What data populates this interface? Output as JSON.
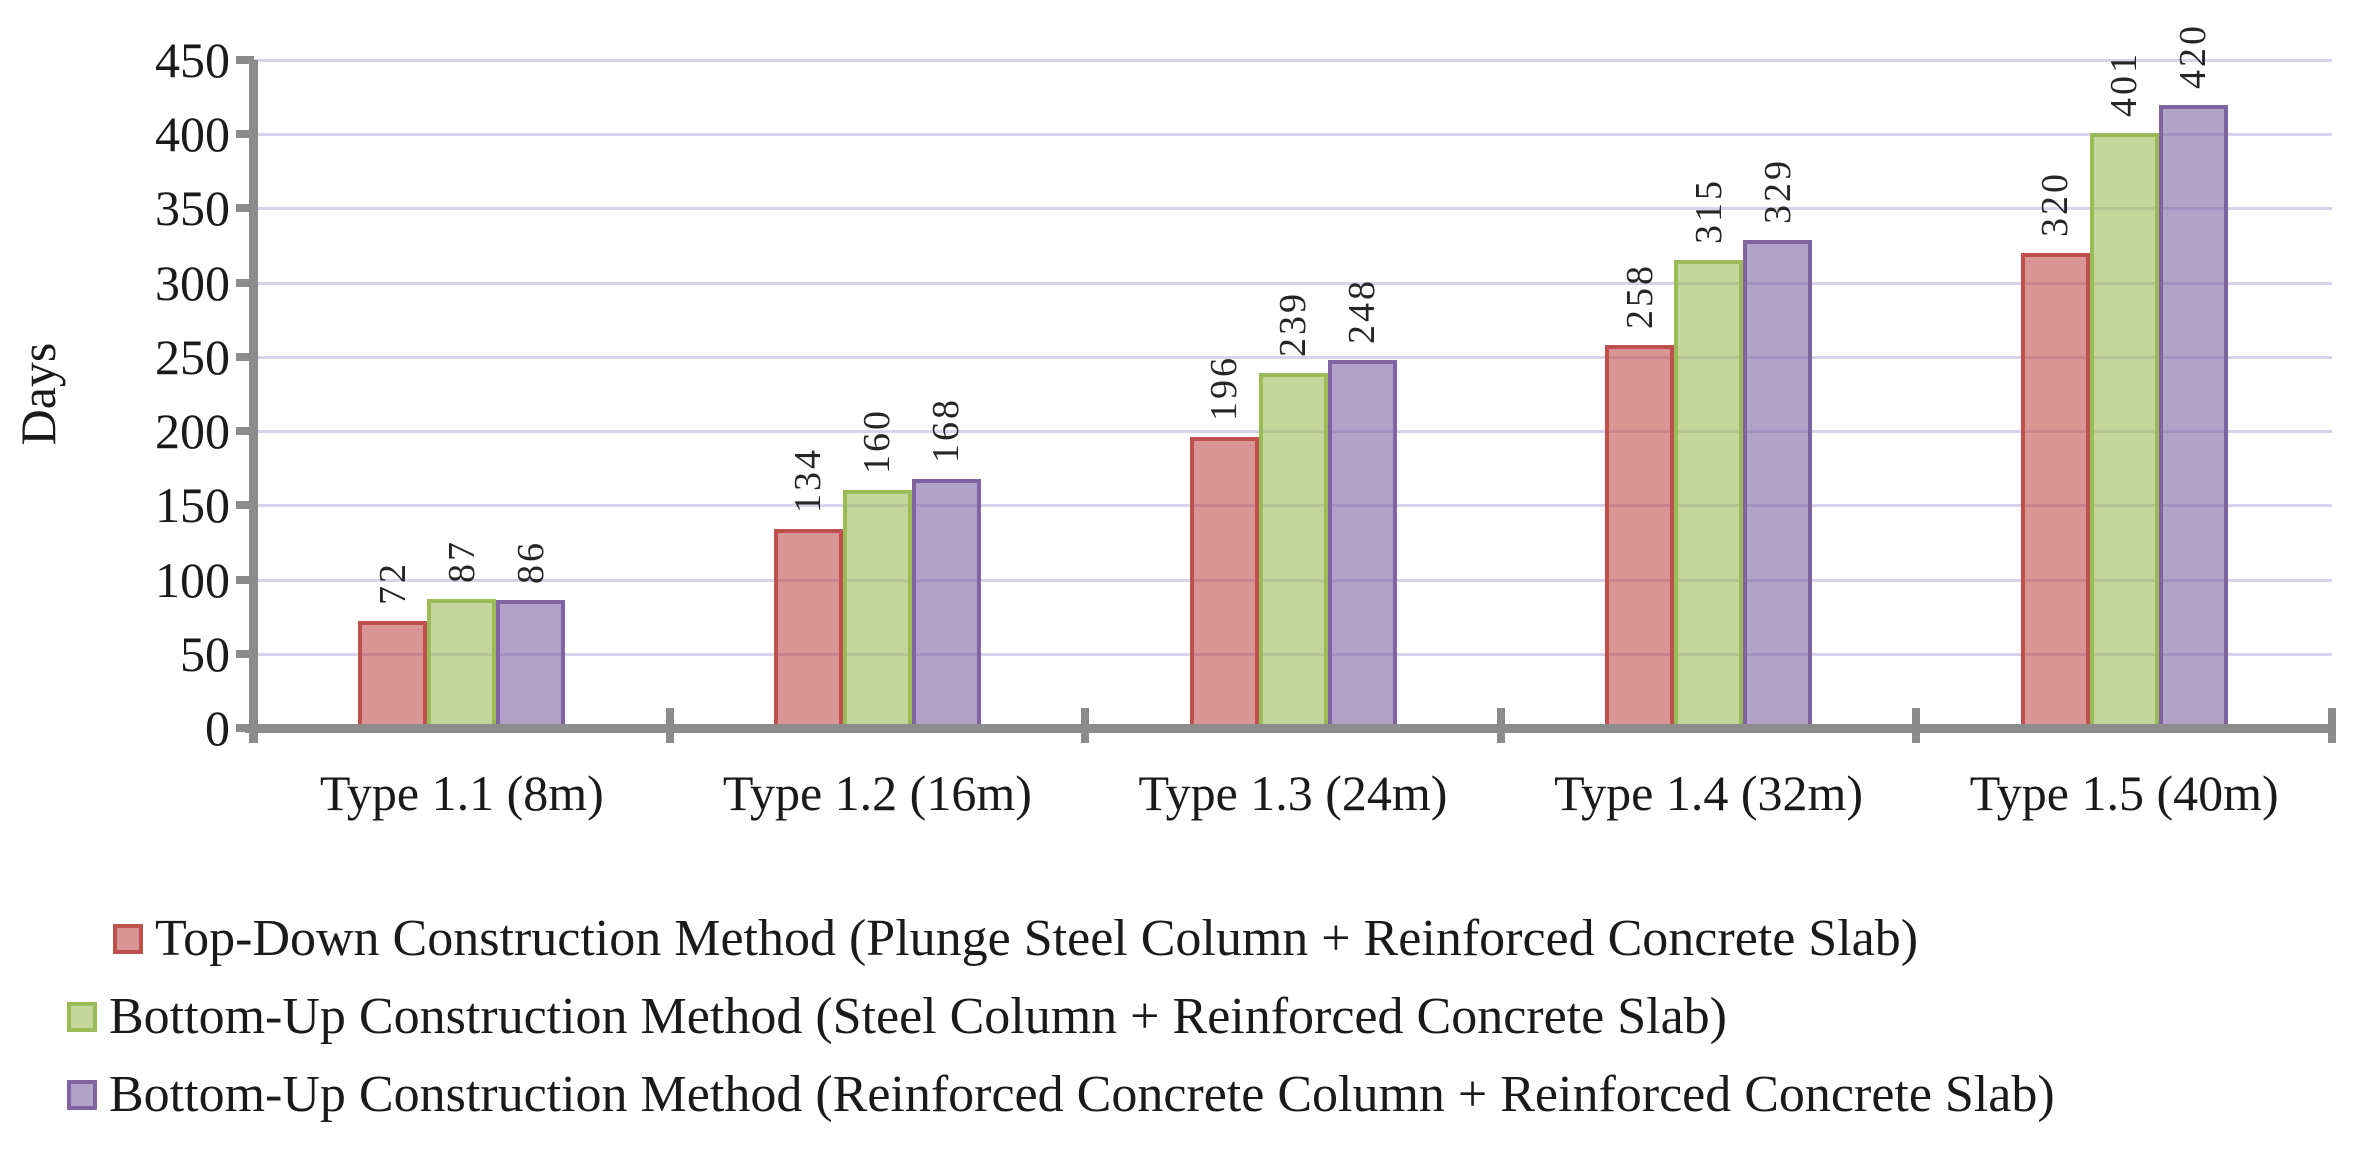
{
  "chart_data": {
    "type": "bar",
    "title": "",
    "ylabel": "Days",
    "xlabel": "",
    "ylim": [
      0,
      450
    ],
    "y_ticks": [
      "0",
      "50",
      "100",
      "150",
      "200",
      "250",
      "300",
      "350",
      "400",
      "450"
    ],
    "grid": true,
    "legend_position": "bottom-left",
    "data_labels_rotated_90": true,
    "categories": [
      "Type 1.1 (8m)",
      "Type 1.2 (16m)",
      "Type 1.3 (24m)",
      "Type 1.4 (32m)",
      "Type 1.5 (40m)"
    ],
    "series": [
      {
        "name": "Top-Down Construction Method (Plunge Steel Column + Reinforced Concrete Slab)",
        "values": [
          72,
          134,
          196,
          258,
          320
        ],
        "labels": [
          "72",
          "134",
          "196",
          "258",
          "320"
        ],
        "border_color": "#C0504D",
        "fill_color": "rgba(192,80,77,0.6)"
      },
      {
        "name": "Bottom-Up Construction Method (Steel Column + Reinforced Concrete Slab)",
        "values": [
          87,
          160,
          239,
          315,
          401
        ],
        "labels": [
          "87",
          "160",
          "239",
          "315",
          "401"
        ],
        "border_color": "#9BBB59",
        "fill_color": "rgba(155,187,89,0.6)"
      },
      {
        "name": "Bottom-Up Construction Method (Reinforced Concrete Column + Reinforced Concrete Slab)",
        "values": [
          86,
          168,
          248,
          329,
          420
        ],
        "labels": [
          "86",
          "168",
          "248",
          "329",
          "420"
        ],
        "border_color": "#8064A2",
        "fill_color": "rgba(128,100,162,0.6)"
      }
    ],
    "colors": {
      "axis_color": "#8C8C8C",
      "gridline_color": "#D9D2E8",
      "label_text_color": "#262626"
    }
  }
}
